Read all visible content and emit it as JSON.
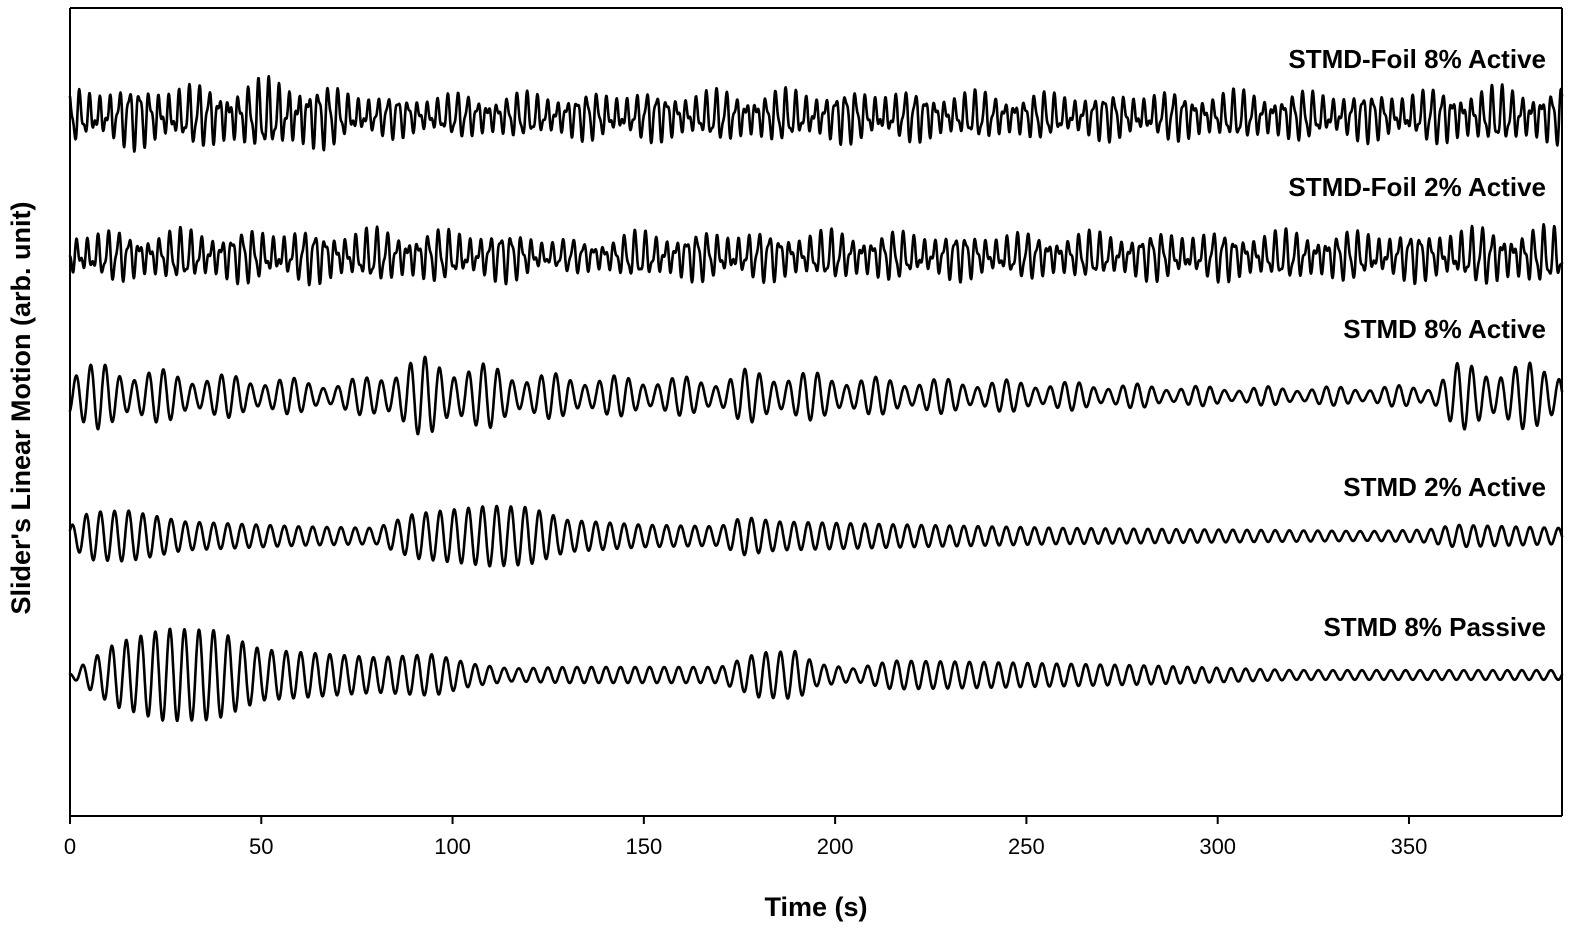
{
  "chart_data": {
    "type": "line",
    "title": "",
    "xlabel": "Time (s)",
    "ylabel": "Slider's Linear Motion (arb. unit)",
    "xlim": [
      0,
      390
    ],
    "x_ticks": [
      "0",
      "50",
      "100",
      "150",
      "200",
      "250",
      "300",
      "350"
    ],
    "y_ticks": [],
    "grid": false,
    "legend": "none",
    "series": [
      {
        "name": "STMD-Foil 8% Active",
        "baseline": 4,
        "period": 2.6,
        "envelope": [
          [
            0,
            0.28
          ],
          [
            20,
            0.34
          ],
          [
            35,
            0.32
          ],
          [
            45,
            0.36
          ],
          [
            60,
            0.4
          ],
          [
            68,
            0.32
          ],
          [
            80,
            0.22
          ],
          [
            120,
            0.24
          ],
          [
            150,
            0.26
          ],
          [
            200,
            0.28
          ],
          [
            250,
            0.24
          ],
          [
            300,
            0.26
          ],
          [
            350,
            0.26
          ],
          [
            360,
            0.3
          ],
          [
            390,
            0.3
          ]
        ]
      },
      {
        "name": "STMD-Foil 2% Active",
        "baseline": 3,
        "period": 2.7,
        "envelope": [
          [
            0,
            0.26
          ],
          [
            50,
            0.28
          ],
          [
            80,
            0.28
          ],
          [
            120,
            0.26
          ],
          [
            125,
            0.16
          ],
          [
            140,
            0.2
          ],
          [
            150,
            0.26
          ],
          [
            200,
            0.26
          ],
          [
            250,
            0.24
          ],
          [
            300,
            0.26
          ],
          [
            355,
            0.26
          ],
          [
            360,
            0.3
          ],
          [
            390,
            0.3
          ]
        ]
      },
      {
        "name": "STMD 8% Active",
        "baseline": 2,
        "period": 3.8,
        "envelope": [
          [
            0,
            0.4
          ],
          [
            10,
            0.42
          ],
          [
            30,
            0.3
          ],
          [
            55,
            0.24
          ],
          [
            70,
            0.18
          ],
          [
            78,
            0.26
          ],
          [
            88,
            0.48
          ],
          [
            95,
            0.5
          ],
          [
            110,
            0.4
          ],
          [
            120,
            0.3
          ],
          [
            140,
            0.26
          ],
          [
            170,
            0.24
          ],
          [
            176,
            0.34
          ],
          [
            190,
            0.32
          ],
          [
            210,
            0.24
          ],
          [
            250,
            0.2
          ],
          [
            300,
            0.12
          ],
          [
            330,
            0.12
          ],
          [
            355,
            0.14
          ],
          [
            362,
            0.42
          ],
          [
            390,
            0.42
          ]
        ]
      },
      {
        "name": "STMD 2% Active",
        "baseline": 1,
        "period": 3.7,
        "envelope": [
          [
            0,
            0.12
          ],
          [
            5,
            0.3
          ],
          [
            15,
            0.32
          ],
          [
            30,
            0.18
          ],
          [
            60,
            0.12
          ],
          [
            80,
            0.1
          ],
          [
            90,
            0.28
          ],
          [
            110,
            0.38
          ],
          [
            120,
            0.36
          ],
          [
            130,
            0.2
          ],
          [
            150,
            0.14
          ],
          [
            170,
            0.12
          ],
          [
            176,
            0.24
          ],
          [
            185,
            0.18
          ],
          [
            220,
            0.14
          ],
          [
            260,
            0.1
          ],
          [
            300,
            0.08
          ],
          [
            340,
            0.06
          ],
          [
            355,
            0.08
          ],
          [
            362,
            0.14
          ],
          [
            390,
            0.1
          ]
        ]
      },
      {
        "name": "STMD 8% Passive",
        "baseline": 0,
        "period": 3.8,
        "envelope": [
          [
            0,
            0.02
          ],
          [
            5,
            0.18
          ],
          [
            12,
            0.4
          ],
          [
            25,
            0.58
          ],
          [
            38,
            0.56
          ],
          [
            50,
            0.32
          ],
          [
            80,
            0.22
          ],
          [
            95,
            0.26
          ],
          [
            105,
            0.14
          ],
          [
            115,
            0.08
          ],
          [
            130,
            0.1
          ],
          [
            160,
            0.1
          ],
          [
            170,
            0.1
          ],
          [
            180,
            0.28
          ],
          [
            190,
            0.3
          ],
          [
            195,
            0.14
          ],
          [
            205,
            0.08
          ],
          [
            215,
            0.18
          ],
          [
            240,
            0.16
          ],
          [
            280,
            0.12
          ],
          [
            320,
            0.06
          ],
          [
            360,
            0.06
          ],
          [
            390,
            0.06
          ]
        ]
      }
    ]
  }
}
